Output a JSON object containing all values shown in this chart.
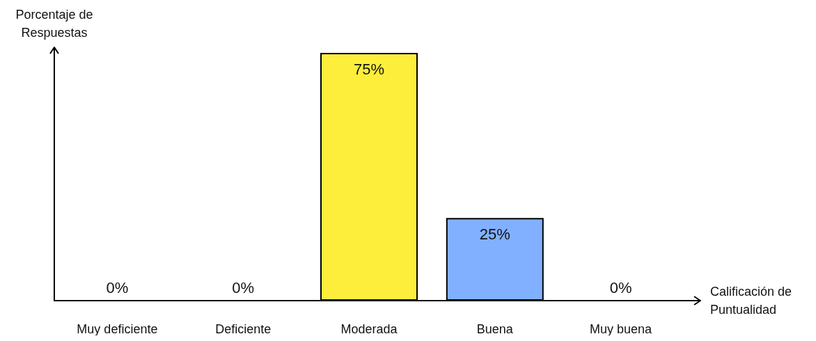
{
  "chart_data": {
    "type": "bar",
    "ylabel": "Porcentaje de Respuestas",
    "xlabel": "Calificación de Puntualidad",
    "categories": [
      "Muy deficiente",
      "Deficiente",
      "Moderada",
      "Buena",
      "Muy buena"
    ],
    "values": [
      0,
      0,
      75,
      25,
      0
    ],
    "colors": [
      null,
      null,
      "#feee3c",
      "#80b0ff",
      null
    ],
    "value_labels": [
      "0%",
      "0%",
      "75%",
      "25%",
      "0%"
    ],
    "tick_labels": "x",
    "grid": false
  }
}
